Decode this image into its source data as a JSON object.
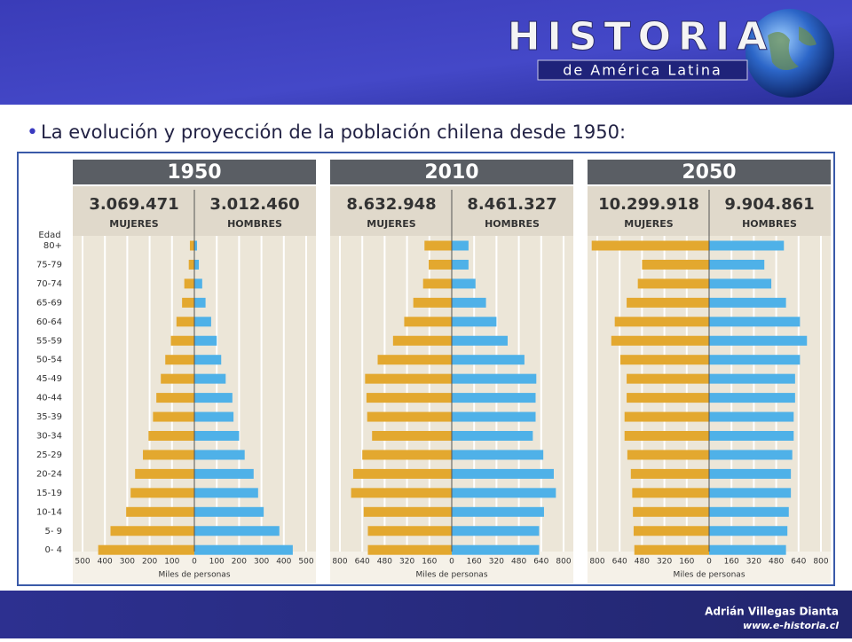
{
  "header": {
    "logo_title": "HISTORIA",
    "logo_subtitle": "de América Latina"
  },
  "slide_title": "La evolución y proyección de la población chilena desde 1950:",
  "footer": {
    "author": "Adrián Villegas Dianta",
    "site": "www.e-historia.cl"
  },
  "chart_data": {
    "type": "pyramid",
    "y_label": "Edad",
    "x_label": "Miles de personas",
    "categories": [
      "80+",
      "75-79",
      "70-74",
      "65-69",
      "60-64",
      "55-59",
      "50-54",
      "45-49",
      "40-44",
      "35-39",
      "30-34",
      "25-29",
      "20-24",
      "15-19",
      "10-14",
      "5- 9",
      "0- 4"
    ],
    "panels": [
      {
        "title": "1950",
        "xlim": [
          0,
          500
        ],
        "xticks": [
          0,
          100,
          200,
          300,
          400,
          500
        ],
        "series": [
          {
            "name": "MUJERES",
            "total": "3.069.471",
            "color": "#e3a82f",
            "values": [
              20,
              25,
              45,
              55,
              80,
              105,
              130,
              150,
              170,
              185,
              205,
              230,
              265,
              285,
              305,
              375,
              430
            ]
          },
          {
            "name": "HOMBRES",
            "total": "3.012.460",
            "color": "#4fb1e8",
            "values": [
              12,
              20,
              35,
              50,
              75,
              100,
              120,
              140,
              170,
              175,
              200,
              225,
              265,
              285,
              310,
              380,
              440
            ]
          }
        ]
      },
      {
        "title": "2010",
        "xlim": [
          0,
          800
        ],
        "xticks": [
          0,
          160,
          320,
          480,
          640,
          800
        ],
        "series": [
          {
            "name": "MUJERES",
            "total": "8.632.948",
            "color": "#e3a82f",
            "values": [
              195,
              165,
              205,
              275,
              340,
              420,
              530,
              620,
              610,
              605,
              570,
              640,
              705,
              720,
              630,
              600,
              600
            ]
          },
          {
            "name": "HOMBRES",
            "total": "8.461.327",
            "color": "#4fb1e8",
            "values": [
              120,
              120,
              170,
              245,
              320,
              400,
              520,
              605,
              600,
              600,
              580,
              655,
              730,
              745,
              660,
              625,
              625
            ]
          }
        ]
      },
      {
        "title": "2050",
        "xlim": [
          0,
          800
        ],
        "xticks": [
          0,
          160,
          320,
          480,
          640,
          800
        ],
        "series": [
          {
            "name": "MUJERES",
            "total": "10.299.918",
            "color": "#e3a82f",
            "values": [
              840,
              480,
              510,
              590,
              675,
              700,
              635,
              590,
              590,
              605,
              605,
              585,
              560,
              550,
              545,
              540,
              535
            ]
          },
          {
            "name": "HOMBRES",
            "total": "9.904.861",
            "color": "#4fb1e8",
            "values": [
              535,
              395,
              445,
              550,
              650,
              700,
              650,
              615,
              615,
              605,
              605,
              595,
              585,
              585,
              570,
              560,
              550
            ]
          }
        ]
      }
    ]
  }
}
